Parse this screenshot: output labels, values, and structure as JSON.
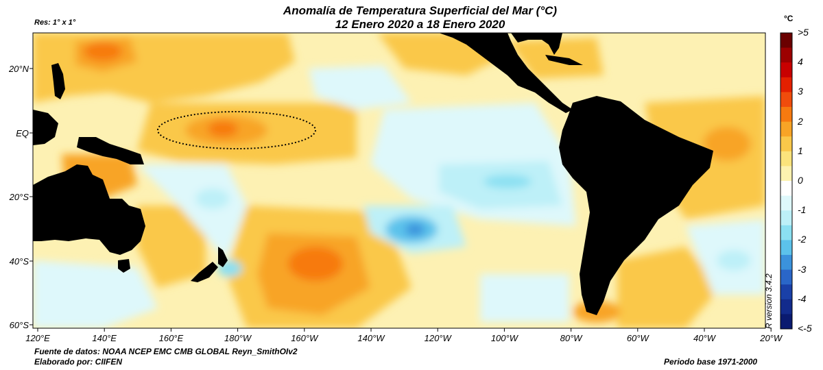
{
  "title_line1": "Anomalía de Temperatura Superficial del Mar (°C)",
  "title_line2": "12 Enero 2020 a 18 Enero 2020",
  "resolution": "Res: 1° x 1°",
  "source": "Fuente de datos: NOAA NCEP EMC CMB GLOBAL Reyn_SmithOIv2",
  "author": "Elaborado por: CIIFEN",
  "base_period": "Periodo base 1971-2000",
  "r_version": "R version 3.4.2",
  "unit": "°C",
  "colorbar": {
    "labels": [
      ">5",
      "4",
      "3",
      "2",
      "1",
      "0",
      "-1",
      "-2",
      "-3",
      "-4",
      "<-5"
    ],
    "colors": [
      "#6a0000",
      "#9c0000",
      "#c80000",
      "#e42000",
      "#f04c0c",
      "#f77a10",
      "#f8a426",
      "#fac84a",
      "#fbe37c",
      "#fdf2b0",
      "#ffffff",
      "#def8fb",
      "#bdf0f8",
      "#8be0f2",
      "#5cc2eb",
      "#3b92dc",
      "#2a66c8",
      "#1a40a8",
      "#122b8c",
      "#0a1a70"
    ]
  },
  "axes": {
    "lat_labels": [
      "20°N",
      "EQ",
      "20°S",
      "40°S",
      "60°S"
    ],
    "lon_labels": [
      "120°E",
      "140°E",
      "160°E",
      "180°W",
      "160°W",
      "140°W",
      "120°W",
      "100°W",
      "80°W",
      "60°W",
      "40°W",
      "20°W"
    ]
  },
  "colors": {
    "land": "#000000",
    "ocean_base": "#fdf1b3",
    "light_yellow": "#fbe07c",
    "yellow": "#fac84a",
    "orange_light": "#f8a426",
    "orange": "#f77a10",
    "red_orange": "#f04c0c",
    "cyan_light": "#def8fb",
    "cyan": "#bdf0f8",
    "blue_light": "#8be0f2",
    "blue": "#5cc2eb",
    "blue_dark": "#3b92dc"
  }
}
